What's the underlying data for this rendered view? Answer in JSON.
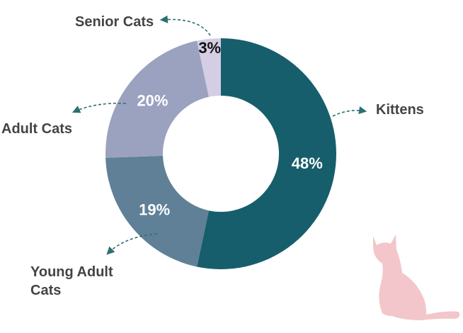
{
  "chart_data": {
    "type": "pie",
    "donut": true,
    "title": "",
    "slices": [
      {
        "label": "Kittens",
        "value": 48,
        "display": "48%",
        "color": "#175e6c",
        "label_color": "#ffffff"
      },
      {
        "label": "Young Adult Cats",
        "value": 19,
        "display": "19%",
        "color": "#5f8097",
        "label_color": "#ffffff"
      },
      {
        "label": "Adult Cats",
        "value": 20,
        "display": "20%",
        "color": "#9aa2bf",
        "label_color": "#ffffff"
      },
      {
        "label": "Senior Cats",
        "value": 3,
        "display": "3%",
        "color": "#d4cde3",
        "label_color": "#111111"
      }
    ],
    "leader_color": "#2d6f72",
    "legend": "callouts"
  },
  "decoration": {
    "icon": "cat-silhouette-icon",
    "color": "#f2c6ca"
  }
}
